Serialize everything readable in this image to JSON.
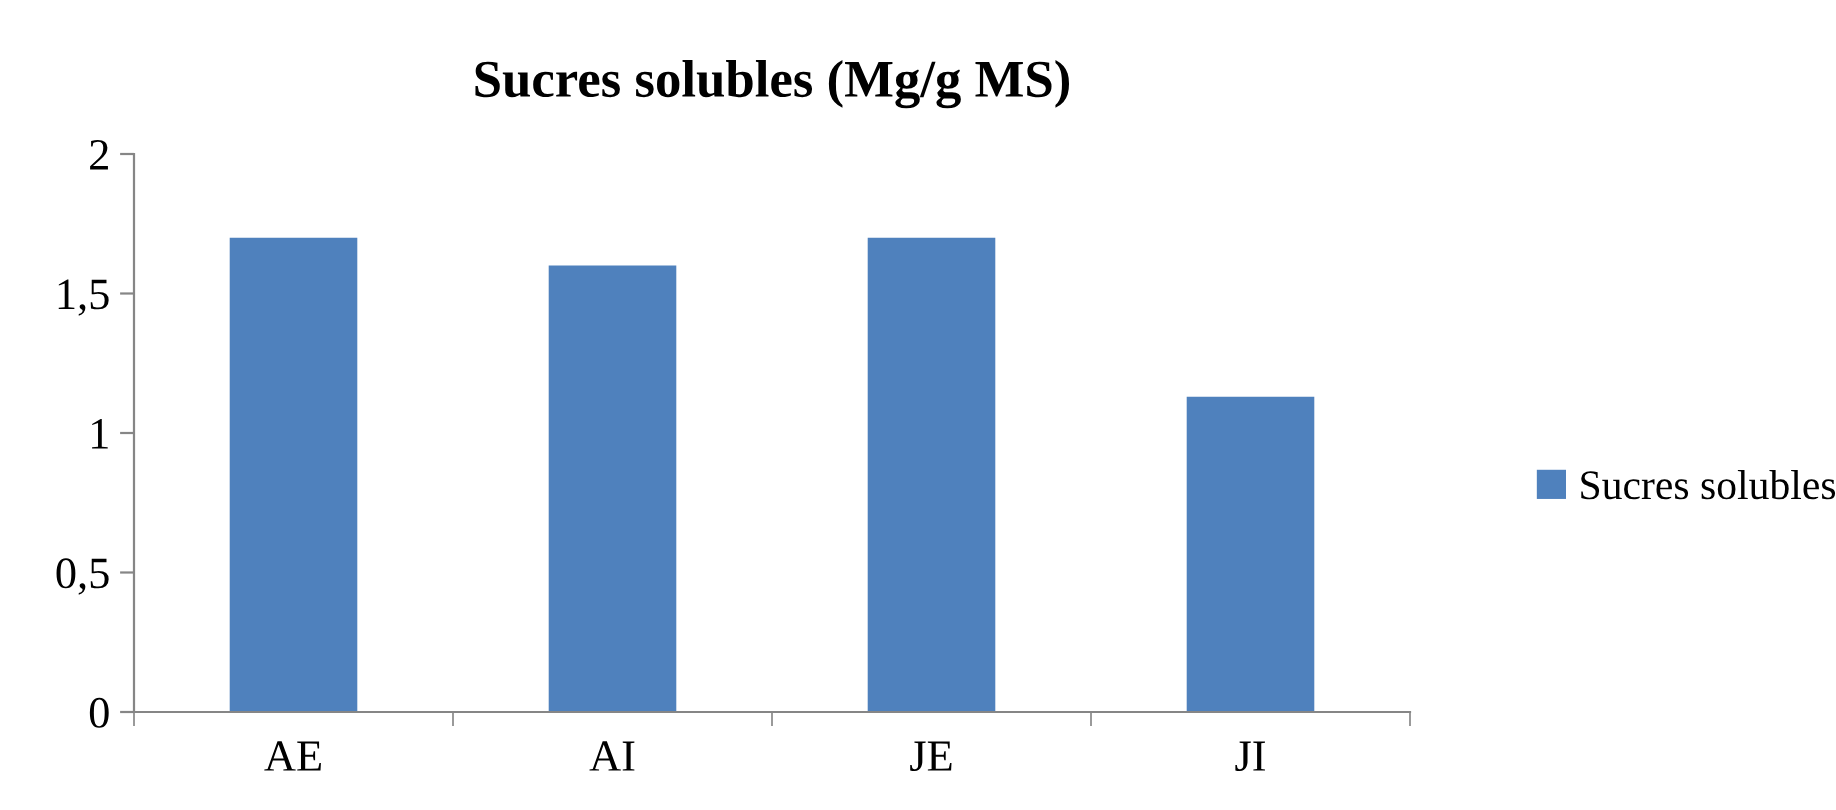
{
  "chart_data": {
    "type": "bar",
    "title": "Sucres solubles (Mg/g MS)",
    "categories": [
      "AE",
      "AI",
      "JE",
      "JI"
    ],
    "series": [
      {
        "name": "Sucres solubles",
        "color": "#4f81bd",
        "values": [
          1.7,
          1.6,
          1.7,
          1.13
        ]
      }
    ],
    "ylim": [
      0,
      2
    ],
    "yticks": [
      0,
      {
        "value": 0.5,
        "label": "0,5"
      },
      1,
      {
        "value": 1.5,
        "label": "1,5"
      },
      2
    ],
    "grid": false,
    "legend": "right"
  }
}
